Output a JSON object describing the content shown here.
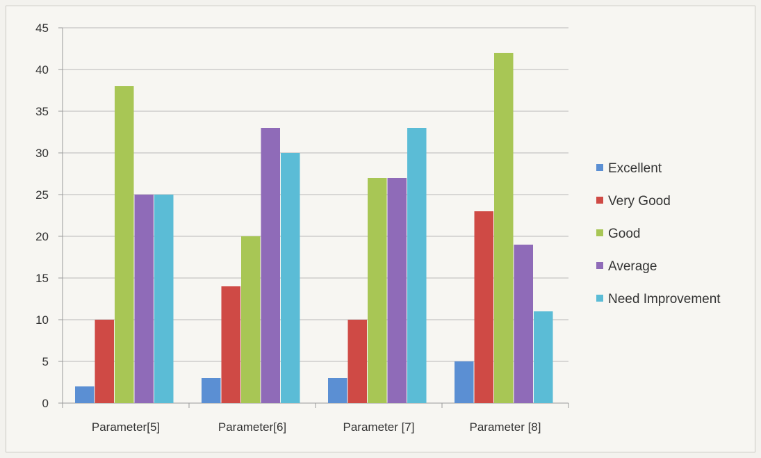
{
  "chart_data": {
    "type": "bar",
    "categories": [
      "Parameter[5]",
      "Parameter[6]",
      "Parameter [7]",
      "Parameter [8]"
    ],
    "series": [
      {
        "name": "Excellent",
        "color": "#5b8fd3",
        "values": [
          2,
          3,
          3,
          5
        ]
      },
      {
        "name": "Very Good",
        "color": "#cf4a45",
        "values": [
          10,
          14,
          10,
          23
        ]
      },
      {
        "name": "Good",
        "color": "#a8c655",
        "values": [
          38,
          20,
          27,
          42
        ]
      },
      {
        "name": "Average",
        "color": "#8f6bb8",
        "values": [
          25,
          33,
          27,
          19
        ]
      },
      {
        "name": "Need Improvement",
        "color": "#5bbcd6",
        "values": [
          25,
          30,
          33,
          11
        ]
      }
    ],
    "ylim": [
      0,
      45
    ],
    "yticks": [
      0,
      5,
      10,
      15,
      20,
      25,
      30,
      35,
      40,
      45
    ],
    "grid": true,
    "legend_position": "right",
    "title": "",
    "xlabel": "",
    "ylabel": ""
  }
}
